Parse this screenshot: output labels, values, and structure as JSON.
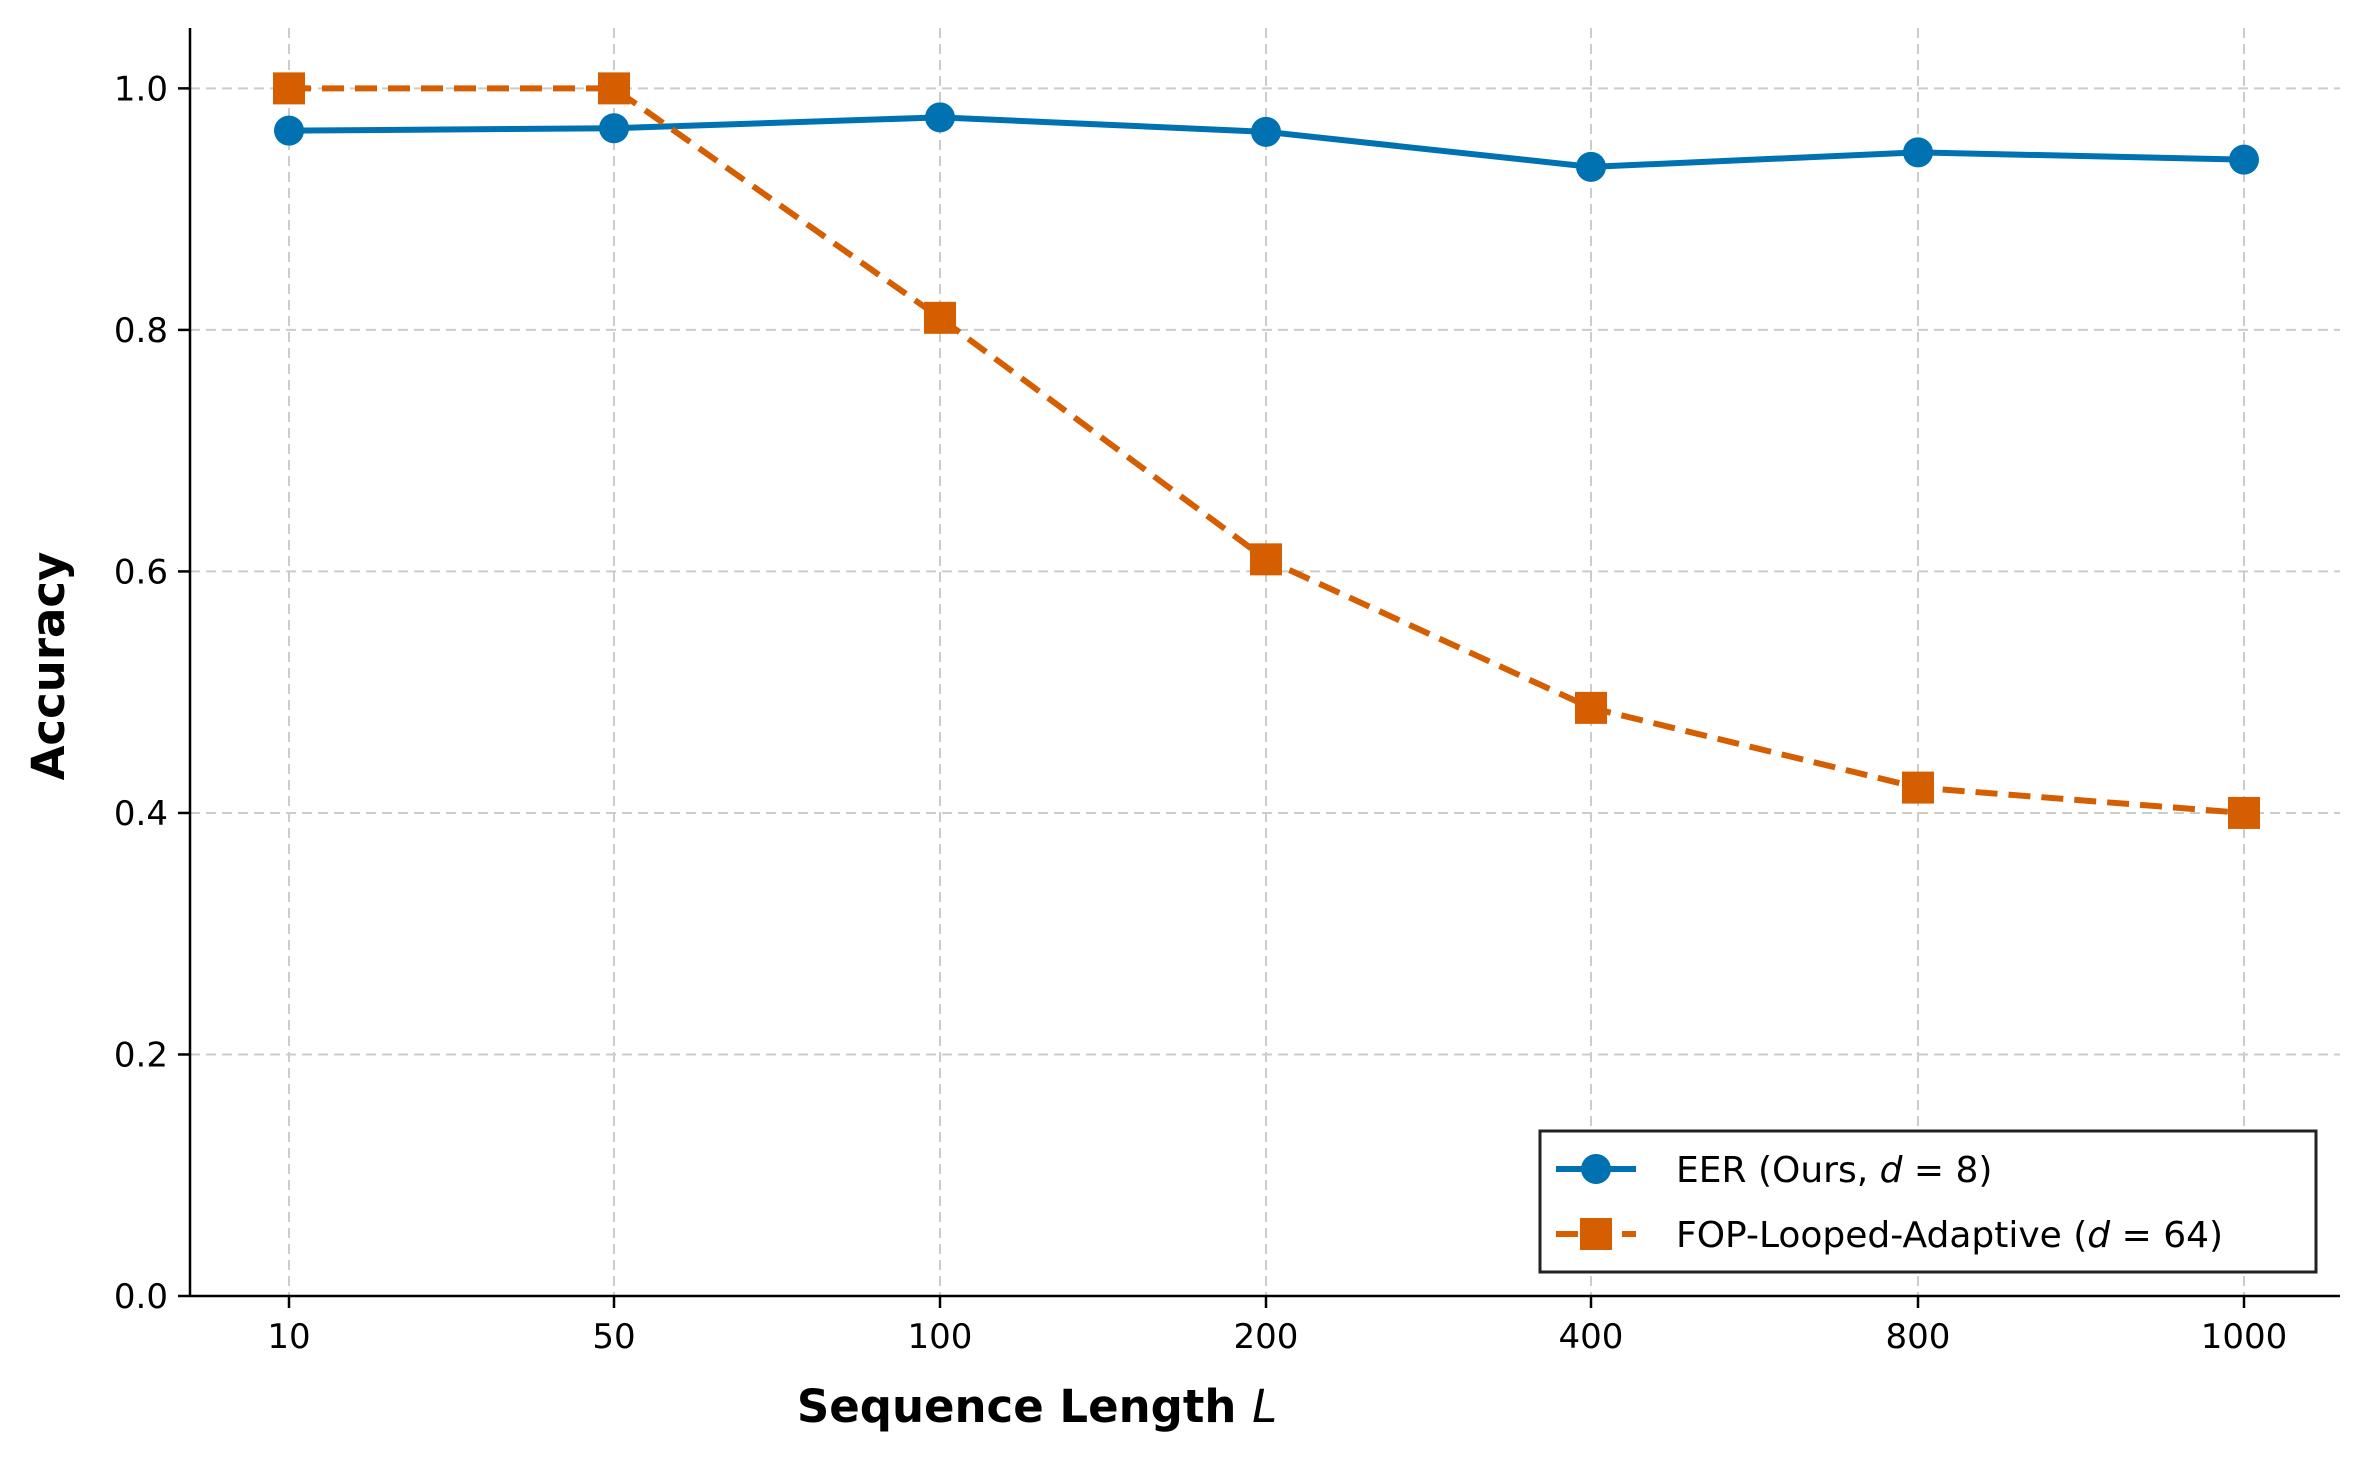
{
  "chart_data": {
    "type": "line",
    "categories": [
      "10",
      "50",
      "100",
      "200",
      "400",
      "800",
      "1000"
    ],
    "series": [
      {
        "name": "EER (Ours, d = 8)",
        "legend_prefix": "EER (Ours, ",
        "legend_var": "d",
        "legend_eq": " = 8)",
        "color": "#0072B2",
        "marker": "circle",
        "line_style": "solid",
        "values": [
          0.965,
          0.967,
          0.976,
          0.964,
          0.935,
          0.947,
          0.941
        ]
      },
      {
        "name": "FOP-Looped-Adaptive (d = 64)",
        "legend_prefix": "FOP-Looped-Adaptive (",
        "legend_var": "d",
        "legend_eq": " = 64)",
        "color": "#D55E00",
        "marker": "square",
        "line_style": "dashed",
        "values": [
          1.0,
          1.0,
          0.81,
          0.61,
          0.487,
          0.421,
          0.4
        ]
      }
    ],
    "xlabel": "Sequence Length ",
    "xlabel_var": "L",
    "ylabel": "Accuracy",
    "ylim": [
      0.0,
      1.05
    ],
    "yticks": [
      "0.0",
      "0.2",
      "0.4",
      "0.6",
      "0.8",
      "1.0"
    ],
    "grid": true,
    "legend_position": "lower-right"
  }
}
